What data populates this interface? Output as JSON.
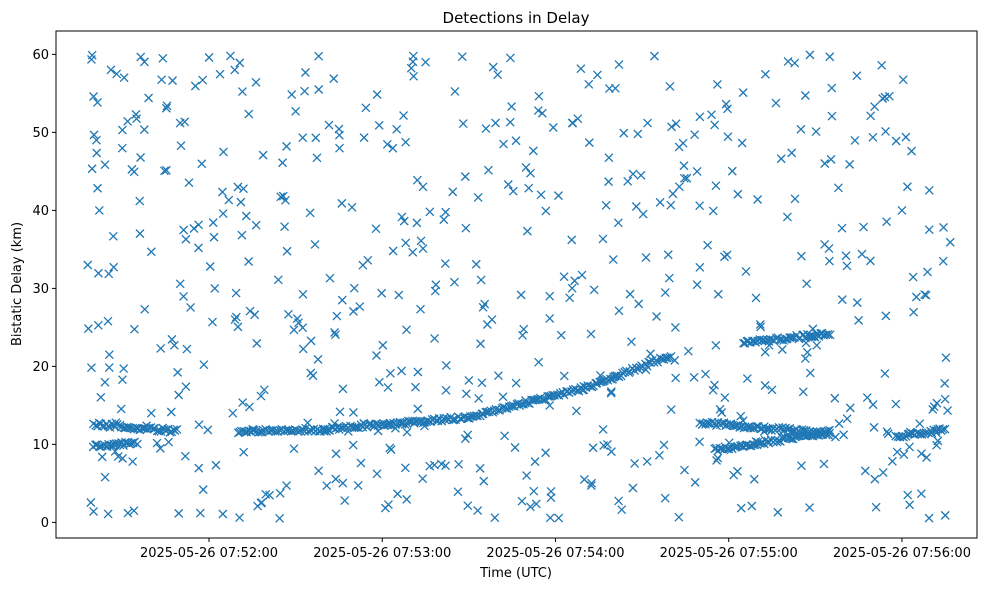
{
  "chart_data": {
    "type": "scatter",
    "title": "Detections in Delay",
    "xlabel": "Time (UTC)",
    "ylabel": "Bistatic Delay (km)",
    "marker": "x",
    "color": "#1f77b4",
    "grid": false,
    "xlim": [
      "2025-05-26 07:51:07",
      "2025-05-26 07:56:26"
    ],
    "ylim": [
      -2,
      63
    ],
    "x_ticks": [
      "2025-05-26 07:52:00",
      "2025-05-26 07:53:00",
      "2025-05-26 07:54:00",
      "2025-05-26 07:55:00",
      "2025-05-26 07:56:00"
    ],
    "y_ticks": [
      0,
      10,
      20,
      30,
      40,
      50,
      60
    ],
    "tracks": [
      {
        "start": "2025-05-26 07:51:20",
        "end": "2025-05-26 07:51:49",
        "delay_start": 12.6,
        "delay_end": 11.7
      },
      {
        "start": "2025-05-26 07:51:20",
        "end": "2025-05-26 07:51:35",
        "delay_start": 9.9,
        "delay_end": 10.1
      },
      {
        "start": "2025-05-26 07:52:10",
        "end": "2025-05-26 07:52:40",
        "delay_start": 11.6,
        "delay_end": 11.9
      },
      {
        "start": "2025-05-26 07:52:40",
        "end": "2025-05-26 07:53:30",
        "delay_start": 11.9,
        "delay_end": 13.5
      },
      {
        "start": "2025-05-26 07:53:30",
        "end": "2025-05-26 07:54:10",
        "delay_start": 13.5,
        "delay_end": 17.2
      },
      {
        "start": "2025-05-26 07:54:10",
        "end": "2025-05-26 07:54:40",
        "delay_start": 17.2,
        "delay_end": 21.4
      },
      {
        "start": "2025-05-26 07:55:05",
        "end": "2025-05-26 07:55:35",
        "delay_start": 23.0,
        "delay_end": 24.2
      },
      {
        "start": "2025-05-26 07:54:50",
        "end": "2025-05-26 07:55:35",
        "delay_start": 12.8,
        "delay_end": 11.4
      },
      {
        "start": "2025-05-26 07:54:55",
        "end": "2025-05-26 07:55:35",
        "delay_start": 9.3,
        "delay_end": 11.6
      },
      {
        "start": "2025-05-26 07:55:58",
        "end": "2025-05-26 07:56:15",
        "delay_start": 10.9,
        "delay_end": 12.0
      }
    ],
    "scattered_points": [
      [
        "2025-05-26 07:51:20",
        54.6
      ],
      [
        "2025-05-26 07:51:28",
        57.5
      ],
      [
        "2025-05-26 07:51:44",
        59.5
      ],
      [
        "2025-05-26 07:52:00",
        59.6
      ],
      [
        "2025-05-26 07:52:38",
        55.5
      ],
      [
        "2025-05-26 07:53:15",
        59.0
      ],
      [
        "2025-05-26 07:53:40",
        57.4
      ],
      [
        "2025-05-26 07:54:22",
        58.7
      ],
      [
        "2025-05-26 07:55:35",
        59.7
      ],
      [
        "2025-05-26 07:55:53",
        58.6
      ],
      [
        "2025-05-26 07:51:21",
        49.0
      ],
      [
        "2025-05-26 07:51:30",
        50.3
      ],
      [
        "2025-05-26 07:51:50",
        51.2
      ],
      [
        "2025-05-26 07:52:05",
        47.5
      ],
      [
        "2025-05-26 07:52:30",
        52.7
      ],
      [
        "2025-05-26 07:53:05",
        50.4
      ],
      [
        "2025-05-26 07:53:42",
        48.5
      ],
      [
        "2025-05-26 07:54:06",
        51.2
      ],
      [
        "2025-05-26 07:54:50",
        52.0
      ],
      [
        "2025-05-26 07:55:25",
        50.4
      ],
      [
        "2025-05-26 07:55:58",
        48.9
      ],
      [
        "2025-05-26 07:51:22",
        40.0
      ],
      [
        "2025-05-26 07:51:36",
        41.2
      ],
      [
        "2025-05-26 07:51:52",
        36.3
      ],
      [
        "2025-05-26 07:52:10",
        43.0
      ],
      [
        "2025-05-26 07:52:46",
        40.9
      ],
      [
        "2025-05-26 07:53:12",
        38.4
      ],
      [
        "2025-05-26 07:53:55",
        42.0
      ],
      [
        "2025-05-26 07:54:28",
        40.5
      ],
      [
        "2025-05-26 07:55:10",
        41.4
      ],
      [
        "2025-05-26 07:55:38",
        42.9
      ],
      [
        "2025-05-26 07:56:00",
        40.0
      ],
      [
        "2025-05-26 07:51:18",
        33.0
      ],
      [
        "2025-05-26 07:51:40",
        34.7
      ],
      [
        "2025-05-26 07:52:02",
        30.0
      ],
      [
        "2025-05-26 07:52:24",
        31.1
      ],
      [
        "2025-05-26 07:52:55",
        33.6
      ],
      [
        "2025-05-26 07:53:25",
        30.8
      ],
      [
        "2025-05-26 07:53:58",
        29.0
      ],
      [
        "2025-05-26 07:54:20",
        33.7
      ],
      [
        "2025-05-26 07:54:50",
        32.7
      ],
      [
        "2025-05-26 07:55:27",
        30.6
      ],
      [
        "2025-05-26 07:56:05",
        28.9
      ],
      [
        "2025-05-26 07:51:25",
        25.8
      ],
      [
        "2025-05-26 07:51:48",
        22.7
      ],
      [
        "2025-05-26 07:52:09",
        26.0
      ],
      [
        "2025-05-26 07:52:31",
        25.6
      ],
      [
        "2025-05-26 07:52:58",
        21.4
      ],
      [
        "2025-05-26 07:53:38",
        26.0
      ],
      [
        "2025-05-26 07:54:02",
        24.0
      ],
      [
        "2025-05-26 07:54:35",
        26.4
      ],
      [
        "2025-05-26 07:55:14",
        22.7
      ],
      [
        "2025-05-26 07:55:45",
        25.9
      ],
      [
        "2025-05-26 07:51:30",
        18.3
      ],
      [
        "2025-05-26 07:51:52",
        17.4
      ],
      [
        "2025-05-26 07:52:18",
        16.2
      ],
      [
        "2025-05-26 07:52:36",
        18.8
      ],
      [
        "2025-05-26 07:53:02",
        17.3
      ],
      [
        "2025-05-26 07:53:30",
        18.2
      ],
      [
        "2025-05-26 07:54:48",
        18.6
      ],
      [
        "2025-05-26 07:55:15",
        17.0
      ],
      [
        "2025-05-26 07:55:48",
        16.0
      ],
      [
        "2025-05-26 07:51:40",
        14.0
      ],
      [
        "2025-05-26 07:52:14",
        14.8
      ],
      [
        "2025-05-26 07:52:50",
        14.1
      ],
      [
        "2025-05-26 07:53:58",
        15.0
      ],
      [
        "2025-05-26 07:54:57",
        14.5
      ],
      [
        "2025-05-26 07:55:50",
        15.1
      ],
      [
        "2025-05-26 07:51:23",
        8.4
      ],
      [
        "2025-05-26 07:51:46",
        10.3
      ],
      [
        "2025-05-26 07:52:12",
        9.0
      ],
      [
        "2025-05-26 07:52:44",
        8.8
      ],
      [
        "2025-05-26 07:53:08",
        7.0
      ],
      [
        "2025-05-26 07:53:46",
        9.6
      ],
      [
        "2025-05-26 07:54:18",
        10.0
      ],
      [
        "2025-05-26 07:54:36",
        8.6
      ],
      [
        "2025-05-26 07:55:33",
        7.5
      ],
      [
        "2025-05-26 07:56:12",
        9.9
      ],
      [
        "2025-05-26 07:51:24",
        5.8
      ],
      [
        "2025-05-26 07:51:58",
        4.2
      ],
      [
        "2025-05-26 07:52:18",
        2.5
      ],
      [
        "2025-05-26 07:52:47",
        2.8
      ],
      [
        "2025-05-26 07:53:14",
        5.6
      ],
      [
        "2025-05-26 07:53:50",
        6.0
      ],
      [
        "2025-05-26 07:54:10",
        5.5
      ],
      [
        "2025-05-26 07:54:38",
        3.1
      ],
      [
        "2025-05-26 07:55:08",
        2.1
      ],
      [
        "2025-05-26 07:55:28",
        1.9
      ],
      [
        "2025-05-26 07:56:02",
        3.5
      ],
      [
        "2025-05-26 07:51:20",
        1.4
      ],
      [
        "2025-05-26 07:51:34",
        1.5
      ],
      [
        "2025-05-26 07:51:57",
        1.2
      ],
      [
        "2025-05-26 07:53:39",
        0.6
      ],
      [
        "2025-05-26 07:55:17",
        1.3
      ],
      [
        "2025-05-26 07:56:15",
        0.9
      ]
    ],
    "random_seed": 7
  }
}
